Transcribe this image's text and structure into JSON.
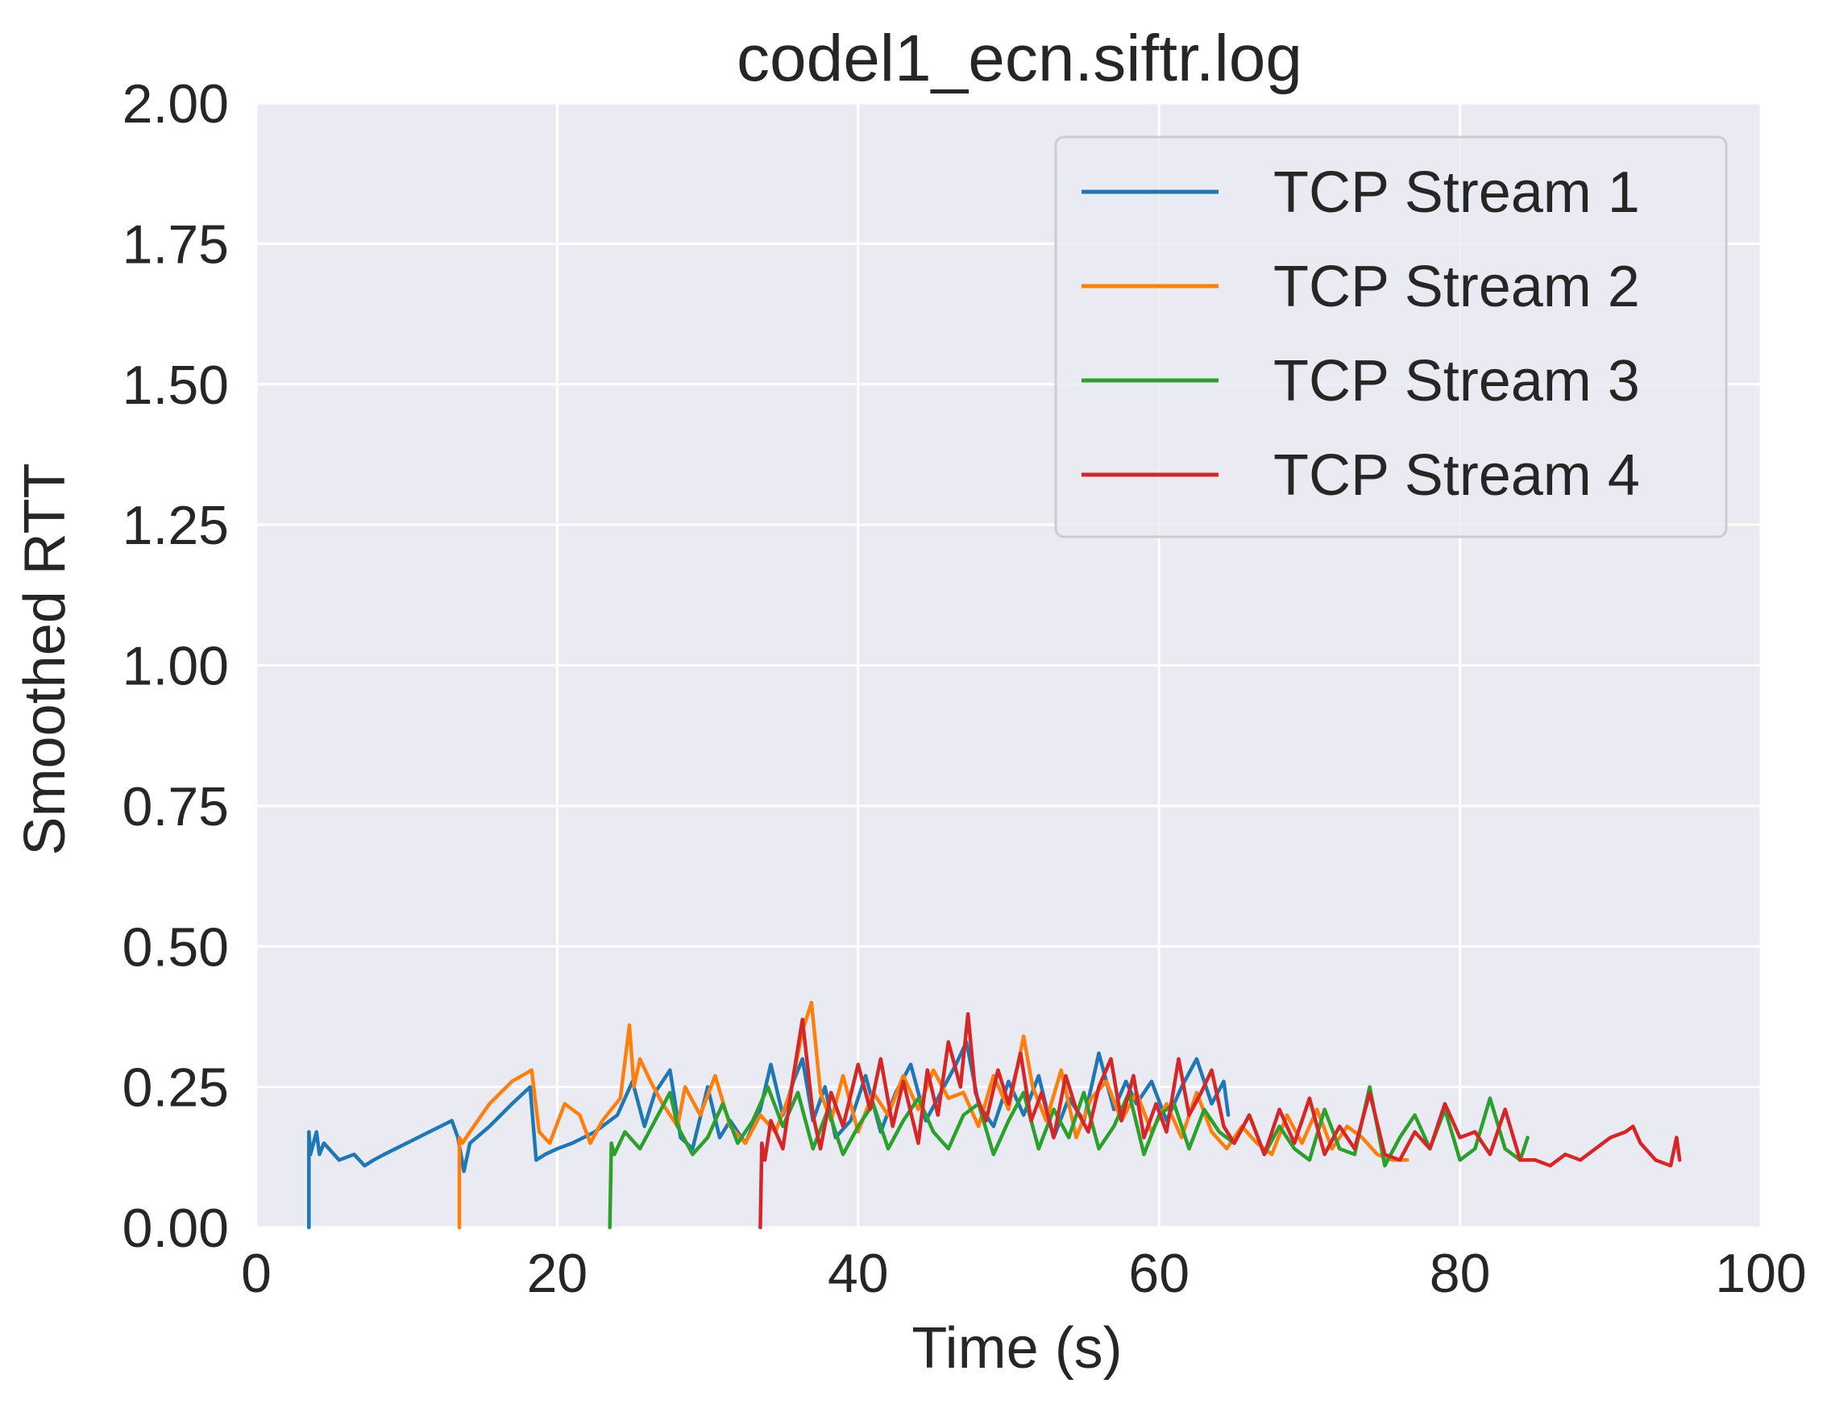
{
  "chart_data": {
    "type": "line",
    "title": "codel1_ecn.siftr.log",
    "xlabel": "Time (s)",
    "ylabel": "Smoothed RTT",
    "xlim": [
      0,
      100
    ],
    "ylim": [
      0,
      2.0
    ],
    "xticks": [
      "0",
      "20",
      "40",
      "60",
      "80",
      "100"
    ],
    "yticks": [
      "0.00",
      "0.25",
      "0.50",
      "0.75",
      "1.00",
      "1.25",
      "1.50",
      "1.75",
      "2.00"
    ],
    "grid": true,
    "legend_position": "top-right",
    "colors": {
      "background": "#eaeaf2",
      "grid": "#ffffff",
      "text": "#262626"
    },
    "series": [
      {
        "name": "TCP Stream 1",
        "color": "#1f77b4",
        "x": [
          3.5,
          3.5,
          3.6,
          4.0,
          4.2,
          4.5,
          5.5,
          6.5,
          7.2,
          7.8,
          8.5,
          10,
          11.5,
          13,
          13.4,
          13.8,
          14.2,
          15.5,
          17,
          18.2,
          18.6,
          19.2,
          20,
          21,
          22.5,
          24,
          25,
          25.8,
          26.5,
          27.5,
          28.2,
          29,
          30,
          30.8,
          31.5,
          32.5,
          33.5,
          34.2,
          35,
          35.7,
          36.3,
          37,
          37.8,
          38.5,
          39.5,
          40.5,
          41.5,
          42.5,
          43.5,
          44.5,
          45.5,
          46.5,
          47.2,
          48,
          49,
          50,
          51,
          52,
          53,
          54,
          55,
          56,
          57,
          57.8,
          58.5,
          59.5,
          60.5,
          61.5,
          62.5,
          63.5,
          64.3,
          64.6
        ],
        "y": [
          0.0,
          0.17,
          0.13,
          0.17,
          0.13,
          0.15,
          0.12,
          0.13,
          0.11,
          0.12,
          0.13,
          0.15,
          0.17,
          0.19,
          0.16,
          0.1,
          0.15,
          0.18,
          0.22,
          0.25,
          0.12,
          0.13,
          0.14,
          0.15,
          0.17,
          0.2,
          0.26,
          0.18,
          0.24,
          0.28,
          0.16,
          0.14,
          0.25,
          0.16,
          0.19,
          0.15,
          0.21,
          0.29,
          0.2,
          0.26,
          0.3,
          0.19,
          0.25,
          0.16,
          0.19,
          0.27,
          0.17,
          0.24,
          0.29,
          0.19,
          0.24,
          0.29,
          0.33,
          0.22,
          0.18,
          0.26,
          0.2,
          0.27,
          0.16,
          0.23,
          0.19,
          0.31,
          0.21,
          0.26,
          0.22,
          0.26,
          0.19,
          0.25,
          0.3,
          0.22,
          0.26,
          0.2
        ]
      },
      {
        "name": "TCP Stream 2",
        "color": "#ff7f0e",
        "x": [
          13.5,
          13.5,
          13.7,
          14.2,
          15.5,
          17,
          18.3,
          18.8,
          19.5,
          20.5,
          21.5,
          22.2,
          23,
          24.2,
          24.8,
          25.1,
          25.5,
          26.2,
          27,
          28,
          28.5,
          29.5,
          30.5,
          31.5,
          32.5,
          33.5,
          34.5,
          35.5,
          36.3,
          36.9,
          37.5,
          38.2,
          39,
          40,
          41,
          42,
          43,
          44,
          45,
          46,
          47,
          48,
          49,
          50,
          51,
          51.6,
          52.5,
          53.5,
          54.5,
          55.5,
          56.5,
          57.5,
          58.5,
          59.5,
          60.5,
          61.5,
          62.5,
          63.5,
          64.5,
          65.5,
          66.5,
          67.5,
          68.5,
          69.5,
          70.5,
          71.5,
          72.5,
          73.5,
          74.5,
          75.5,
          76.5
        ],
        "y": [
          0.0,
          0.16,
          0.15,
          0.17,
          0.22,
          0.26,
          0.28,
          0.17,
          0.15,
          0.22,
          0.2,
          0.15,
          0.19,
          0.23,
          0.36,
          0.25,
          0.3,
          0.26,
          0.22,
          0.18,
          0.25,
          0.2,
          0.27,
          0.18,
          0.15,
          0.2,
          0.17,
          0.24,
          0.35,
          0.4,
          0.24,
          0.19,
          0.27,
          0.17,
          0.24,
          0.2,
          0.27,
          0.21,
          0.28,
          0.23,
          0.24,
          0.18,
          0.27,
          0.21,
          0.34,
          0.25,
          0.19,
          0.28,
          0.16,
          0.23,
          0.26,
          0.19,
          0.24,
          0.17,
          0.22,
          0.16,
          0.24,
          0.17,
          0.14,
          0.18,
          0.15,
          0.13,
          0.2,
          0.15,
          0.21,
          0.14,
          0.18,
          0.16,
          0.13,
          0.12,
          0.12
        ]
      },
      {
        "name": "TCP Stream 3",
        "color": "#2ca02c",
        "x": [
          23.5,
          23.6,
          23.8,
          24.5,
          25.5,
          26.5,
          27.5,
          28,
          29,
          30,
          31,
          32,
          33,
          34,
          35,
          36,
          37,
          38,
          39,
          40,
          41,
          42,
          43,
          44,
          45,
          46,
          47,
          48,
          49,
          50,
          51,
          52,
          53,
          54,
          55,
          56,
          57,
          58,
          59,
          60,
          61,
          62,
          63,
          64,
          65,
          66,
          67,
          68,
          69,
          70,
          71,
          72,
          73,
          74,
          75,
          76,
          77,
          78,
          79,
          80,
          81,
          82,
          83,
          84,
          84.5
        ],
        "y": [
          0.0,
          0.15,
          0.13,
          0.17,
          0.14,
          0.19,
          0.24,
          0.18,
          0.13,
          0.16,
          0.22,
          0.15,
          0.19,
          0.25,
          0.18,
          0.24,
          0.14,
          0.21,
          0.13,
          0.18,
          0.22,
          0.14,
          0.19,
          0.23,
          0.17,
          0.14,
          0.2,
          0.22,
          0.13,
          0.19,
          0.24,
          0.14,
          0.21,
          0.16,
          0.24,
          0.14,
          0.18,
          0.24,
          0.13,
          0.2,
          0.22,
          0.14,
          0.21,
          0.17,
          0.15,
          0.2,
          0.13,
          0.18,
          0.14,
          0.12,
          0.21,
          0.14,
          0.13,
          0.25,
          0.11,
          0.16,
          0.2,
          0.14,
          0.21,
          0.12,
          0.14,
          0.23,
          0.14,
          0.12,
          0.16
        ]
      },
      {
        "name": "TCP Stream 4",
        "color": "#d62728",
        "x": [
          33.5,
          33.6,
          33.8,
          34.2,
          35,
          35.7,
          36.3,
          37,
          37.5,
          38.2,
          39,
          40,
          40.8,
          41.5,
          42.3,
          43,
          44,
          44.6,
          45.3,
          46,
          46.8,
          47.3,
          47.8,
          48.5,
          49.3,
          50,
          50.8,
          51.5,
          52.2,
          53,
          53.8,
          54.5,
          55.3,
          56,
          56.8,
          57.5,
          58.3,
          59,
          59.8,
          60.5,
          61.3,
          62,
          62.8,
          63.5,
          64.3,
          65,
          66,
          67,
          68,
          69,
          70,
          71,
          72,
          73,
          74,
          75,
          76,
          77,
          78,
          79,
          80,
          81,
          82,
          83,
          84,
          85,
          86,
          87,
          88,
          89,
          90,
          91,
          91.5,
          92,
          93,
          94,
          94.4,
          94.6
        ],
        "y": [
          0.0,
          0.15,
          0.12,
          0.19,
          0.14,
          0.27,
          0.37,
          0.2,
          0.14,
          0.24,
          0.18,
          0.29,
          0.21,
          0.3,
          0.18,
          0.26,
          0.15,
          0.28,
          0.2,
          0.33,
          0.25,
          0.38,
          0.24,
          0.19,
          0.28,
          0.22,
          0.31,
          0.19,
          0.24,
          0.16,
          0.27,
          0.21,
          0.17,
          0.25,
          0.3,
          0.19,
          0.27,
          0.16,
          0.22,
          0.17,
          0.3,
          0.2,
          0.24,
          0.28,
          0.18,
          0.15,
          0.2,
          0.13,
          0.21,
          0.15,
          0.23,
          0.13,
          0.18,
          0.14,
          0.24,
          0.13,
          0.12,
          0.17,
          0.14,
          0.22,
          0.16,
          0.17,
          0.13,
          0.21,
          0.12,
          0.12,
          0.11,
          0.13,
          0.12,
          0.14,
          0.16,
          0.17,
          0.18,
          0.15,
          0.12,
          0.11,
          0.16,
          0.12
        ]
      }
    ]
  }
}
